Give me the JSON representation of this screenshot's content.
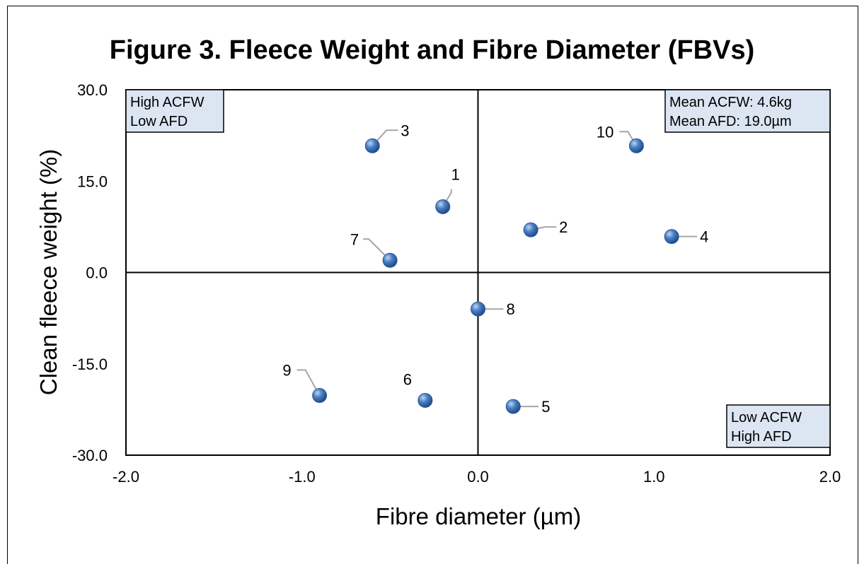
{
  "chart_data": {
    "type": "scatter",
    "title": "Figure 3.  Fleece Weight and Fibre Diameter (FBVs)",
    "xlabel": "Fibre diameter (µm)",
    "ylabel": "Clean fleece weight (%)",
    "xlim": [
      -2.0,
      2.0
    ],
    "ylim": [
      -30.0,
      30.0
    ],
    "x_ticks": [
      "-2.0",
      "-1.0",
      "0.0",
      "1.0",
      "2.0"
    ],
    "y_ticks": [
      "30.0",
      "15.0",
      "0.0",
      "-15.0",
      "-30.0"
    ],
    "grid": false,
    "marker_color": "#4a7fc4",
    "points": [
      {
        "label": "1",
        "x": -0.2,
        "y": 10.8
      },
      {
        "label": "2",
        "x": 0.3,
        "y": 7.0
      },
      {
        "label": "3",
        "x": -0.6,
        "y": 20.8
      },
      {
        "label": "4",
        "x": 1.1,
        "y": 5.9
      },
      {
        "label": "5",
        "x": 0.2,
        "y": -22.0
      },
      {
        "label": "6",
        "x": -0.3,
        "y": -21.0
      },
      {
        "label": "7",
        "x": -0.5,
        "y": 2.0
      },
      {
        "label": "8",
        "x": 0.0,
        "y": -6.0
      },
      {
        "label": "9",
        "x": -0.9,
        "y": -20.2
      },
      {
        "label": "10",
        "x": 0.9,
        "y": 20.8
      }
    ],
    "annotations": {
      "top_left": [
        "High ACFW",
        "Low AFD"
      ],
      "top_right": [
        "Mean ACFW: 4.6kg",
        "Mean AFD: 19.0µm"
      ],
      "bottom_right": [
        "Low ACFW",
        "High AFD"
      ]
    },
    "annotation_fill": "#dce6f2"
  }
}
